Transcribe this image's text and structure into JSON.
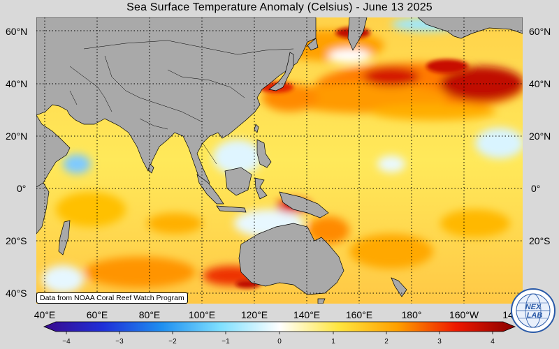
{
  "title": "Sea Surface Temperature Anomaly (Celsius) - June 13 2025",
  "lat_labels_left": [
    "60°N",
    "40°N",
    "20°N",
    "0°",
    "20°S",
    "40°S"
  ],
  "lat_labels_right": [
    "60°N",
    "40°N",
    "20°N",
    "0°",
    "20°S"
  ],
  "lon_labels": [
    "40°E",
    "60°E",
    "80°E",
    "100°E",
    "120°E",
    "140°E",
    "160°E",
    "180°",
    "160°W",
    "14"
  ],
  "credit": "Data from NOAA Coral Reef Watch Program",
  "colorbar": {
    "ticks": [
      "−4",
      "−3",
      "−2",
      "−1",
      "0",
      "1",
      "2",
      "3",
      "4"
    ],
    "min": -4,
    "max": 4,
    "colors": [
      "#3a0a8c",
      "#1f2fd8",
      "#1f8ff0",
      "#7fe0ff",
      "#ffffff",
      "#ffe640",
      "#ffa000",
      "#ee1800",
      "#880000"
    ]
  },
  "logo": {
    "text": "NEXLAB",
    "icon": "nexlab-globe-logo"
  },
  "map": {
    "land_color": "#a9a9a9",
    "grid": "dotted",
    "lon_range": [
      "35°E",
      "145°W"
    ],
    "lat_range": [
      "40°S",
      "65°N"
    ]
  }
}
